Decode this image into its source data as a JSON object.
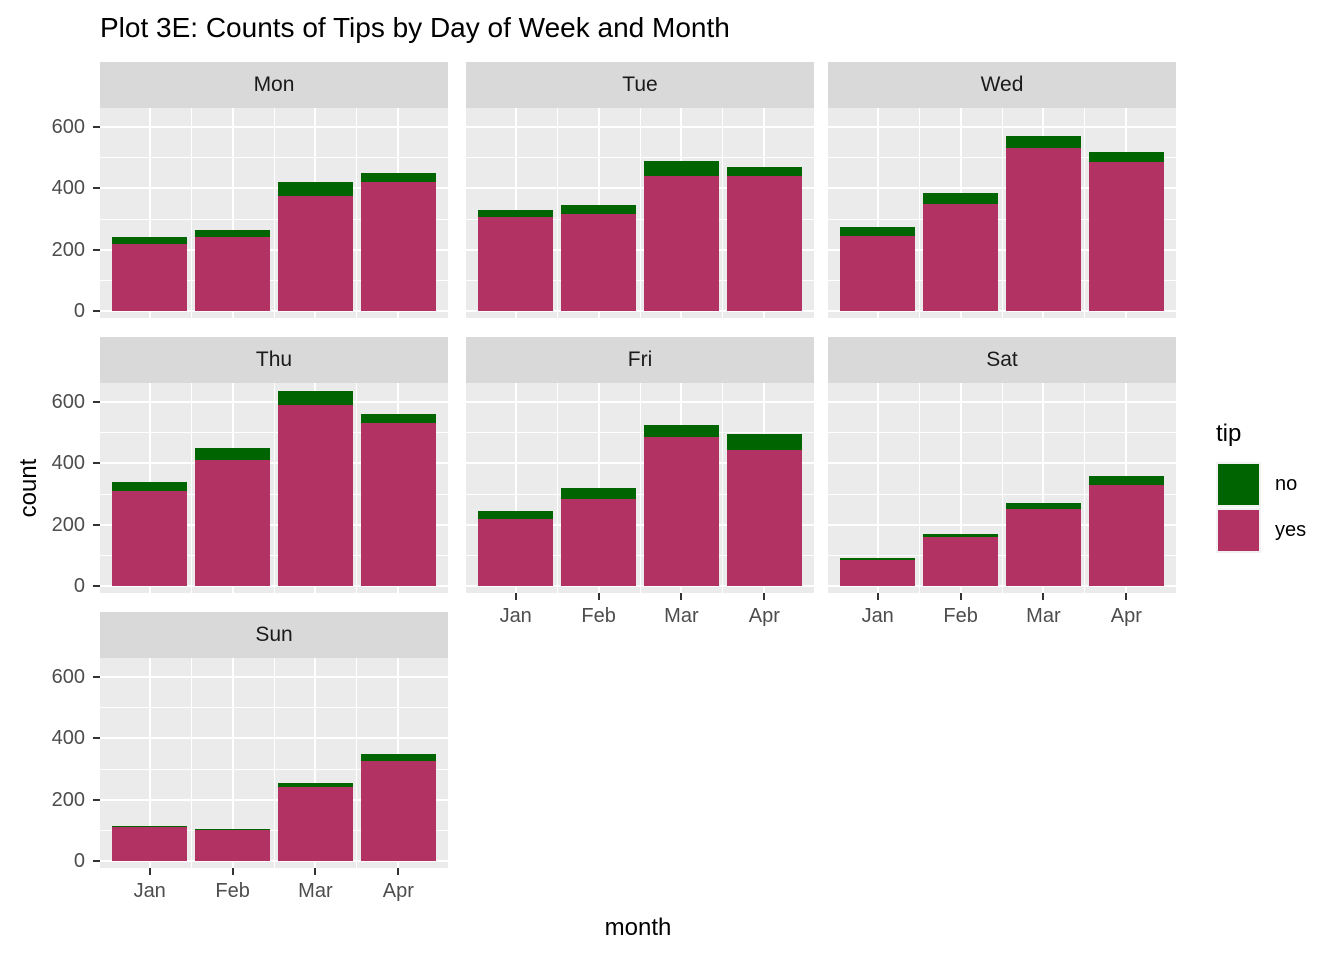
{
  "chart_data": {
    "type": "bar",
    "stacked": true,
    "title": "Plot 3E: Counts of Tips by Day of Week and Month",
    "xlabel": "month",
    "ylabel": "count",
    "categories": [
      "Jan",
      "Feb",
      "Mar",
      "Apr"
    ],
    "facets": [
      "Mon",
      "Tue",
      "Wed",
      "Thu",
      "Fri",
      "Sat",
      "Sun"
    ],
    "y_ticks": [
      0,
      200,
      400,
      600
    ],
    "ylim": [
      0,
      660
    ],
    "grid": true,
    "legend": {
      "title": "tip",
      "position": "right",
      "entries": [
        "no",
        "yes"
      ]
    },
    "colors": {
      "no": "#006400",
      "yes": "#B23363"
    },
    "panel_background": "#EBEBEB",
    "strip_background": "#D9D9D9",
    "series_stack_order_bottom_to_top": [
      "yes",
      "no"
    ],
    "facet_data": [
      {
        "facet": "Mon",
        "yes": [
          220,
          240,
          375,
          420
        ],
        "no": [
          20,
          25,
          45,
          30
        ]
      },
      {
        "facet": "Tue",
        "yes": [
          305,
          315,
          440,
          440
        ],
        "no": [
          25,
          30,
          50,
          30
        ]
      },
      {
        "facet": "Wed",
        "yes": [
          245,
          350,
          530,
          485
        ],
        "no": [
          30,
          35,
          40,
          35
        ]
      },
      {
        "facet": "Thu",
        "yes": [
          310,
          410,
          590,
          530
        ],
        "no": [
          30,
          40,
          45,
          30
        ]
      },
      {
        "facet": "Fri",
        "yes": [
          220,
          285,
          485,
          445
        ],
        "no": [
          25,
          35,
          40,
          50
        ]
      },
      {
        "facet": "Sat",
        "yes": [
          85,
          160,
          250,
          330
        ],
        "no": [
          7,
          10,
          20,
          30
        ]
      },
      {
        "facet": "Sun",
        "yes": [
          110,
          100,
          240,
          325
        ],
        "no": [
          5,
          5,
          15,
          25
        ]
      }
    ]
  }
}
